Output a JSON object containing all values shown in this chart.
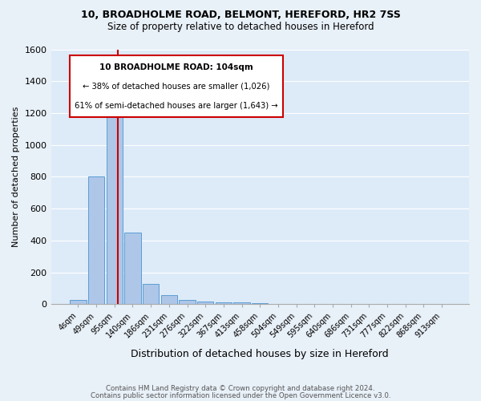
{
  "title1": "10, BROADHOLME ROAD, BELMONT, HEREFORD, HR2 7SS",
  "title2": "Size of property relative to detached houses in Hereford",
  "xlabel": "Distribution of detached houses by size in Hereford",
  "ylabel": "Number of detached properties",
  "footer1": "Contains HM Land Registry data © Crown copyright and database right 2024.",
  "footer2": "Contains public sector information licensed under the Open Government Licence v3.0.",
  "bin_labels": [
    "4sqm",
    "49sqm",
    "95sqm",
    "140sqm",
    "186sqm",
    "231sqm",
    "276sqm",
    "322sqm",
    "367sqm",
    "413sqm",
    "458sqm",
    "504sqm",
    "549sqm",
    "595sqm",
    "640sqm",
    "686sqm",
    "731sqm",
    "777sqm",
    "822sqm",
    "868sqm",
    "913sqm"
  ],
  "bar_values": [
    25,
    800,
    1230,
    450,
    130,
    55,
    25,
    15,
    10,
    10,
    8,
    0,
    0,
    0,
    0,
    0,
    0,
    0,
    0,
    0,
    0
  ],
  "bar_color": "#aec6e8",
  "bar_edge_color": "#5a9fd4",
  "background_color": "#ddeaf8",
  "grid_color": "#ffffff",
  "vline_color": "#cc0000",
  "vline_pos": 2.18,
  "annotation_line1": "10 BROADHOLME ROAD: 104sqm",
  "annotation_line2": "← 38% of detached houses are smaller (1,026)",
  "annotation_line3": "61% of semi-detached houses are larger (1,643) →",
  "annotation_box_color": "#ffffff",
  "annotation_box_edge": "#cc0000",
  "ylim": [
    0,
    1600
  ],
  "yticks": [
    0,
    200,
    400,
    600,
    800,
    1000,
    1200,
    1400,
    1600
  ]
}
